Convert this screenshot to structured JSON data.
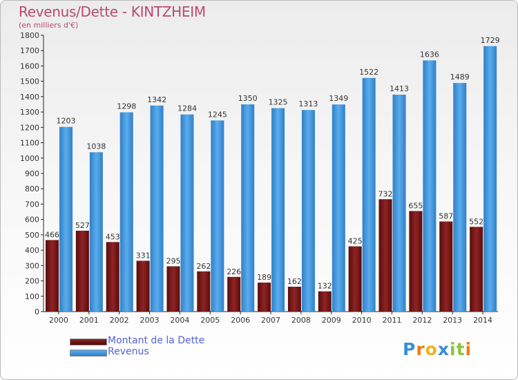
{
  "title": "Revenus/Dette - KINTZHEIM",
  "subtitle": "(en milliers d'€)",
  "colors": {
    "dette": "#7a1616",
    "revenus": "#3c94dc",
    "axis_text": "#333333",
    "title": "#b84a6f",
    "legend_text": "#5561d8"
  },
  "legend": {
    "items": [
      {
        "label": "Montant de la Dette",
        "color": "#7a1616"
      },
      {
        "label": "Revenus",
        "color": "#3c94dc"
      }
    ]
  },
  "logo": {
    "letters": [
      "P",
      "r",
      "o",
      "x",
      "i",
      "t",
      "i"
    ],
    "colors": [
      "#3a8fd6",
      "#f07b16",
      "#f0b21c",
      "#3a8fd6",
      "#8cc43c",
      "#8cc43c",
      "#f07b16"
    ]
  },
  "chart_data": {
    "type": "bar",
    "categories": [
      "2000",
      "2001",
      "2002",
      "2003",
      "2004",
      "2005",
      "2006",
      "2007",
      "2008",
      "2009",
      "2010",
      "2011",
      "2012",
      "2013",
      "2014"
    ],
    "series": [
      {
        "name": "Montant de la Dette",
        "values": [
          466,
          527,
          453,
          331,
          295,
          262,
          226,
          189,
          162,
          132,
          425,
          732,
          655,
          587,
          552
        ]
      },
      {
        "name": "Revenus",
        "values": [
          1203,
          1038,
          1298,
          1342,
          1284,
          1245,
          1350,
          1325,
          1313,
          1349,
          1522,
          1413,
          1636,
          1489,
          1729
        ]
      }
    ],
    "title": "Revenus/Dette - KINTZHEIM",
    "subtitle": "(en milliers d'€)",
    "xlabel": "",
    "ylabel": "",
    "ylim": [
      0,
      1800
    ],
    "yticks": [
      0,
      100,
      200,
      300,
      400,
      500,
      600,
      700,
      800,
      900,
      1000,
      1100,
      1200,
      1300,
      1400,
      1500,
      1600,
      1700,
      1800
    ],
    "grid": false,
    "legend_position": "bottom-left",
    "data_labels": true
  }
}
